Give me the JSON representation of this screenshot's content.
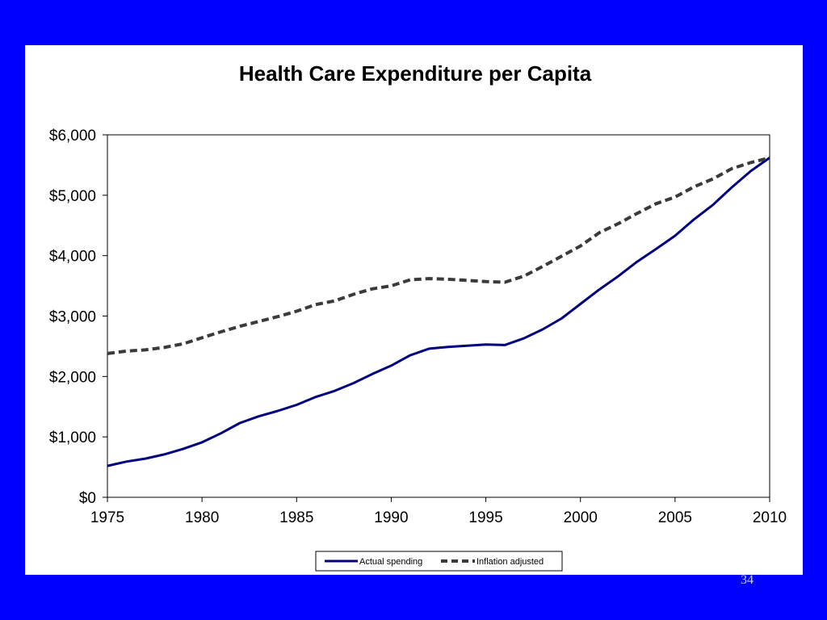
{
  "slide": {
    "background_color": "#0000ff",
    "page_number": "34"
  },
  "chart_data": {
    "type": "line",
    "title": "Health Care Expenditure per Capita",
    "xlabel": "",
    "ylabel": "",
    "xlim": [
      1975,
      2010
    ],
    "ylim": [
      0,
      6000
    ],
    "x_ticks": [
      "1975",
      "1980",
      "1985",
      "1990",
      "1995",
      "2000",
      "2005",
      "2010"
    ],
    "y_ticks": [
      "$0",
      "$1,000",
      "$2,000",
      "$3,000",
      "$4,000",
      "$5,000",
      "$6,000"
    ],
    "y_tick_values": [
      0,
      1000,
      2000,
      3000,
      4000,
      5000,
      6000
    ],
    "x_tick_values": [
      1975,
      1980,
      1985,
      1990,
      1995,
      2000,
      2005,
      2010
    ],
    "grid": false,
    "legend_position": "bottom",
    "x": [
      1975,
      1976,
      1977,
      1978,
      1979,
      1980,
      1981,
      1982,
      1983,
      1984,
      1985,
      1986,
      1987,
      1988,
      1989,
      1990,
      1991,
      1992,
      1993,
      1994,
      1995,
      1996,
      1997,
      1998,
      1999,
      2000,
      2001,
      2002,
      2003,
      2004,
      2005,
      2006,
      2007,
      2008,
      2009,
      2010
    ],
    "series": [
      {
        "name": "Actual spending",
        "color": "#000080",
        "style": "solid",
        "values": [
          520,
          590,
          640,
          710,
          800,
          910,
          1060,
          1230,
          1340,
          1430,
          1530,
          1660,
          1760,
          1890,
          2040,
          2180,
          2350,
          2460,
          2490,
          2510,
          2530,
          2520,
          2630,
          2780,
          2960,
          3200,
          3440,
          3660,
          3900,
          4110,
          4330,
          4600,
          4840,
          5130,
          5400,
          5620
        ]
      },
      {
        "name": "Inflation adjusted",
        "color": "#3a3a3a",
        "style": "dashed",
        "values": [
          2380,
          2420,
          2440,
          2480,
          2540,
          2640,
          2740,
          2830,
          2910,
          2990,
          3080,
          3190,
          3250,
          3360,
          3450,
          3500,
          3600,
          3620,
          3610,
          3590,
          3570,
          3560,
          3660,
          3820,
          3990,
          4160,
          4380,
          4530,
          4700,
          4860,
          4970,
          5140,
          5270,
          5440,
          5540,
          5620
        ]
      }
    ]
  }
}
